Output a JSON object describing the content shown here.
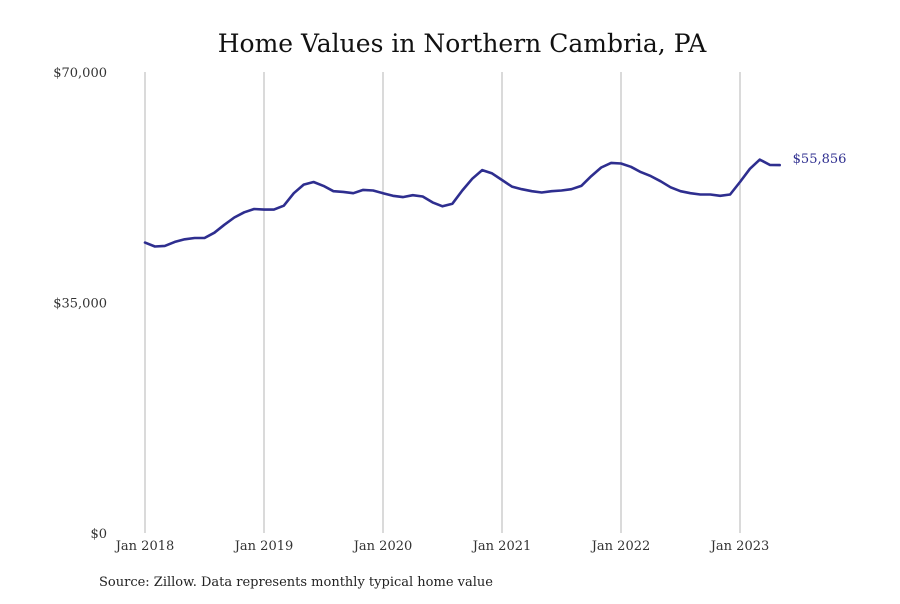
{
  "chart_data": {
    "type": "line",
    "title": "Home Values in Northern Cambria, PA",
    "xlabel": "",
    "ylabel": "",
    "ylim": [
      0,
      70000
    ],
    "y_ticks": [
      {
        "value": 0,
        "label": "$0"
      },
      {
        "value": 35000,
        "label": "$35,000"
      },
      {
        "value": 70000,
        "label": "$70,000"
      }
    ],
    "x_ticks": [
      {
        "value": "2018-01",
        "label": "Jan 2018"
      },
      {
        "value": "2019-01",
        "label": "Jan 2019"
      },
      {
        "value": "2020-01",
        "label": "Jan 2020"
      },
      {
        "value": "2021-01",
        "label": "Jan 2021"
      },
      {
        "value": "2022-01",
        "label": "Jan 2022"
      },
      {
        "value": "2023-01",
        "label": "Jan 2023"
      }
    ],
    "grid": "vertical lines at x ticks",
    "line_color": "#2e2e8f",
    "end_label": "$55,856",
    "source": "Source: Zillow. Data represents monthly typical home value",
    "series": [
      {
        "x": [
          "2018-01",
          "2018-02",
          "2018-03",
          "2018-04",
          "2018-05",
          "2018-06",
          "2018-07",
          "2018-08",
          "2018-09",
          "2018-10",
          "2018-11",
          "2018-12",
          "2019-01",
          "2019-02",
          "2019-03",
          "2019-04",
          "2019-05",
          "2019-06",
          "2019-07",
          "2019-08",
          "2019-09",
          "2019-10",
          "2019-11",
          "2019-12",
          "2020-01",
          "2020-02",
          "2020-03",
          "2020-04",
          "2020-05",
          "2020-06",
          "2020-07",
          "2020-08",
          "2020-09",
          "2020-10",
          "2020-11",
          "2020-12",
          "2021-01",
          "2021-02",
          "2021-03",
          "2021-04",
          "2021-05",
          "2021-06",
          "2021-07",
          "2021-08",
          "2021-09",
          "2021-10",
          "2021-11",
          "2021-12",
          "2022-01",
          "2022-02",
          "2022-03",
          "2022-04",
          "2022-05",
          "2022-06",
          "2022-07",
          "2022-08",
          "2022-09",
          "2022-10",
          "2022-11",
          "2022-12",
          "2023-01",
          "2023-02",
          "2023-03",
          "2023-04",
          "2023-05"
        ],
        "values": [
          44100,
          43500,
          43600,
          44200,
          44600,
          44800,
          44800,
          45600,
          46800,
          47900,
          48700,
          49200,
          49100,
          49100,
          49700,
          51600,
          52900,
          53300,
          52700,
          51900,
          51800,
          51600,
          52100,
          52000,
          51600,
          51200,
          51000,
          51300,
          51100,
          50200,
          49600,
          50000,
          52000,
          53800,
          55100,
          54600,
          53600,
          52600,
          52200,
          51900,
          51700,
          51900,
          52000,
          52200,
          52700,
          54200,
          55500,
          56200,
          56100,
          55600,
          54800,
          54200,
          53400,
          52500,
          51900,
          51600,
          51400,
          51400,
          51200,
          51400,
          53300,
          55300,
          56700,
          55900,
          55856
        ]
      }
    ]
  }
}
